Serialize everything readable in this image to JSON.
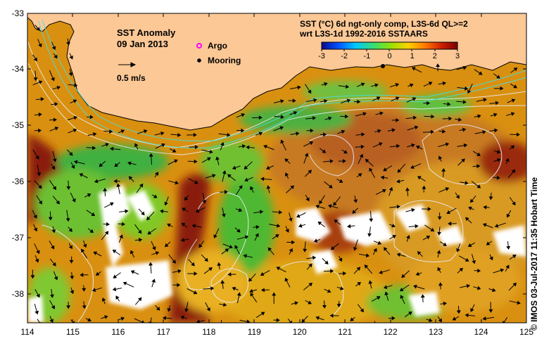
{
  "map": {
    "title": "SST Anomaly",
    "date": "09 Jan 2013",
    "scale_label": "0.5 m/s",
    "legend": {
      "argo_label": "Argo",
      "mooring_label": "Mooring",
      "argo_color": "#ff00ff",
      "mooring_color": "#000000"
    },
    "product": {
      "line1": "SST (°C) 6d ngt-only comp, L3S-6d QL>=2",
      "line2": "wrt L3S-1d 1992-2016 SSTAARS"
    },
    "colorbar": {
      "ticks": [
        "-3",
        "-2",
        "-1",
        "0",
        "1",
        "2",
        "3"
      ],
      "range": [
        -3,
        3
      ],
      "colors": [
        "#0a0a8c",
        "#0050ff",
        "#00c8ff",
        "#40e060",
        "#a0e000",
        "#ffd000",
        "#ff7a00",
        "#d02000",
        "#7a0000"
      ]
    },
    "land_color": "#fcc896",
    "cloud_color": "#ffffff",
    "y_ticks": [
      "-33",
      "-34",
      "-35",
      "-36",
      "-37",
      "-38"
    ],
    "x_ticks": [
      "114",
      "115",
      "116",
      "117",
      "118",
      "119",
      "120",
      "121",
      "122",
      "123",
      "124",
      "125"
    ],
    "lon_range": [
      114,
      125
    ],
    "lat_range": [
      -38.5,
      -33
    ],
    "credit": "© IMOS 03-Jul-2017 11:35 Hobart Time"
  }
}
